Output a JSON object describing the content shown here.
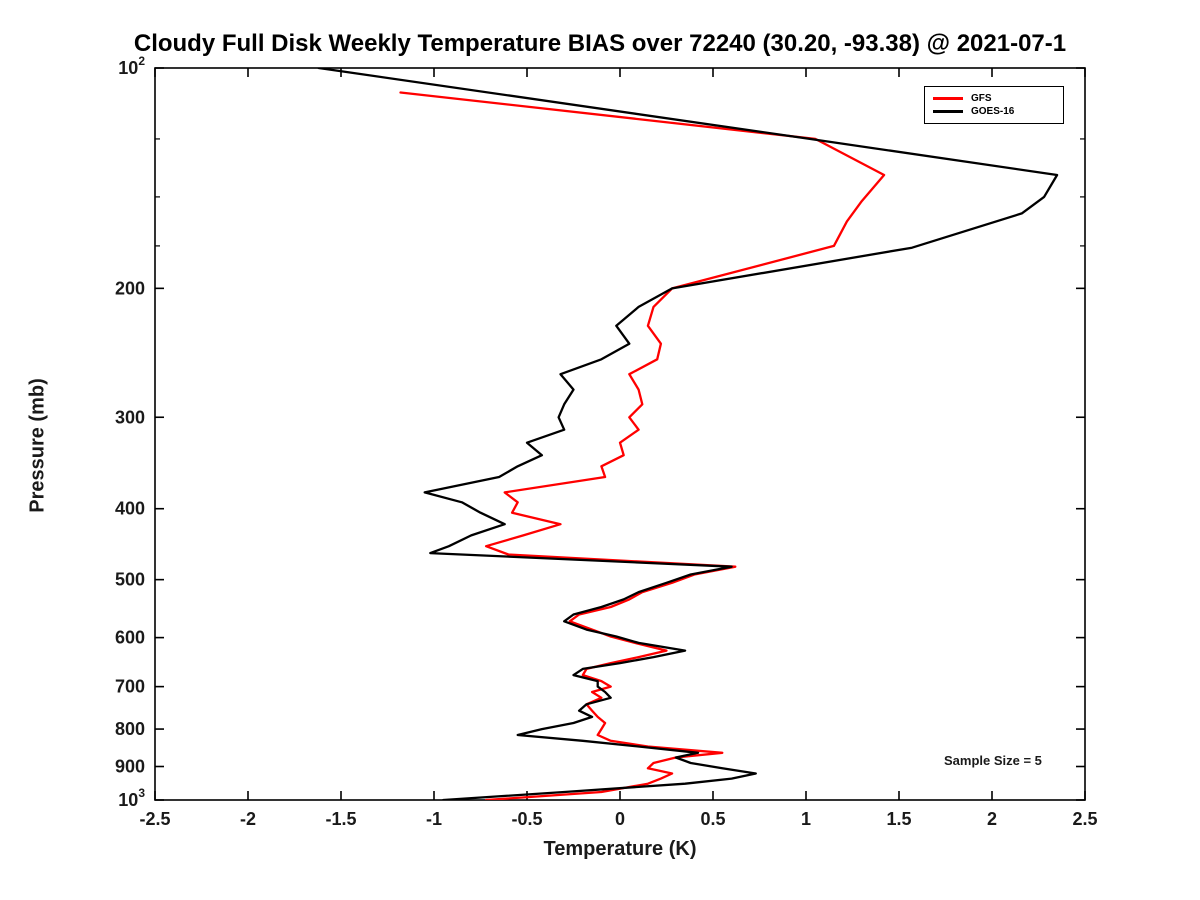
{
  "chart_data": {
    "type": "line",
    "title": "Cloudy Full Disk Weekly Temperature BIAS over 72240 (30.20, -93.38) @ 2021-07-1",
    "xlabel": "Temperature (K)",
    "ylabel": "Pressure (mb)",
    "annotation": "Sample Size = 5",
    "xlim": [
      -2.5,
      2.5
    ],
    "ylim": [
      100,
      1000
    ],
    "y_scale": "log",
    "y_axis_inverted_downward": true,
    "grid": false,
    "legend_position": "top-right",
    "x_ticks": [
      -2.5,
      -2,
      -1.5,
      -1,
      -0.5,
      0,
      0.5,
      1,
      1.5,
      2,
      2.5
    ],
    "x_tick_labels": [
      "-2.5",
      "-2",
      "-1.5",
      "-1",
      "-0.5",
      "0",
      "0.5",
      "1",
      "1.5",
      "2",
      "2.5"
    ],
    "y_ticks": [
      100,
      200,
      300,
      400,
      500,
      600,
      700,
      800,
      900,
      1000
    ],
    "y_tick_labels": [
      "10^2",
      "200",
      "300",
      "400",
      "500",
      "600",
      "700",
      "800",
      "900",
      "10^3"
    ],
    "y_minor_ticks": [
      125,
      150,
      175
    ],
    "series": [
      {
        "name": "GFS",
        "color": "#ff0000",
        "pressure": [
          108,
          125,
          140,
          152,
          162,
          175,
          200,
          212,
          225,
          238,
          250,
          262,
          275,
          288,
          300,
          312,
          325,
          338,
          350,
          362,
          380,
          392,
          405,
          420,
          435,
          450,
          462,
          480,
          492,
          505,
          520,
          532,
          545,
          558,
          570,
          585,
          598,
          610,
          625,
          638,
          650,
          662,
          675,
          688,
          700,
          712,
          725,
          740,
          755,
          770,
          785,
          800,
          815,
          830,
          845,
          862,
          875,
          890,
          905,
          920,
          935,
          950,
          975,
          1000
        ],
        "values": [
          -1.18,
          1.05,
          1.42,
          1.3,
          1.22,
          1.15,
          0.28,
          0.18,
          0.15,
          0.22,
          0.2,
          0.05,
          0.1,
          0.12,
          0.05,
          0.1,
          0.0,
          0.02,
          -0.1,
          -0.08,
          -0.62,
          -0.55,
          -0.58,
          -0.32,
          -0.52,
          -0.72,
          -0.6,
          0.62,
          0.4,
          0.28,
          0.12,
          0.05,
          -0.05,
          -0.22,
          -0.27,
          -0.15,
          -0.05,
          0.08,
          0.25,
          0.1,
          -0.05,
          -0.18,
          -0.2,
          -0.1,
          -0.05,
          -0.15,
          -0.1,
          -0.18,
          -0.15,
          -0.12,
          -0.08,
          -0.1,
          -0.12,
          -0.05,
          0.15,
          0.55,
          0.3,
          0.18,
          0.15,
          0.28,
          0.22,
          0.15,
          -0.1,
          -0.72
        ]
      },
      {
        "name": "GOES-16",
        "color": "#000000",
        "pressure": [
          100,
          125,
          140,
          150,
          158,
          176,
          200,
          212,
          225,
          238,
          250,
          262,
          275,
          288,
          300,
          312,
          325,
          338,
          350,
          362,
          380,
          392,
          405,
          420,
          435,
          450,
          460,
          480,
          492,
          505,
          520,
          532,
          545,
          558,
          570,
          585,
          598,
          610,
          625,
          638,
          650,
          662,
          675,
          688,
          700,
          712,
          725,
          740,
          755,
          770,
          785,
          800,
          815,
          830,
          845,
          862,
          875,
          890,
          905,
          920,
          935,
          950,
          975,
          1000
        ],
        "values": [
          -1.62,
          1.02,
          2.35,
          2.28,
          2.16,
          1.57,
          0.28,
          0.1,
          -0.02,
          0.05,
          -0.1,
          -0.32,
          -0.25,
          -0.3,
          -0.33,
          -0.3,
          -0.5,
          -0.42,
          -0.55,
          -0.65,
          -1.05,
          -0.85,
          -0.75,
          -0.62,
          -0.8,
          -0.92,
          -1.02,
          0.6,
          0.38,
          0.25,
          0.1,
          0.02,
          -0.1,
          -0.25,
          -0.3,
          -0.18,
          -0.02,
          0.1,
          0.35,
          0.18,
          0.0,
          -0.2,
          -0.25,
          -0.12,
          -0.12,
          -0.08,
          -0.05,
          -0.18,
          -0.22,
          -0.15,
          -0.25,
          -0.42,
          -0.55,
          -0.2,
          0.1,
          0.42,
          0.3,
          0.38,
          0.55,
          0.73,
          0.6,
          0.35,
          -0.3,
          -0.95
        ]
      }
    ]
  }
}
